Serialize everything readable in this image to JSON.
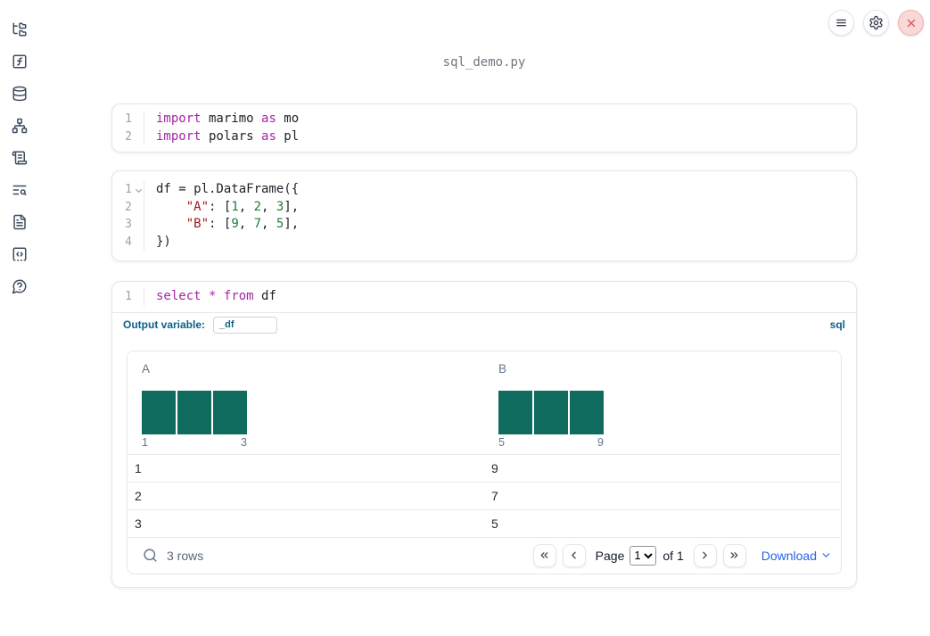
{
  "window": {
    "title": "sql_demo.py"
  },
  "topbar": {
    "buttons": [
      "menu",
      "settings",
      "close"
    ]
  },
  "sidebar": {
    "items": [
      "file-explorer",
      "variables",
      "data-sources",
      "dependency-graph",
      "scratchpad",
      "logs",
      "documentation",
      "snippets",
      "help"
    ]
  },
  "colors": {
    "histogram_bar": "#0e6b5e",
    "keyword": "#a626a4",
    "string": "#a31515",
    "number": "#1e7e34",
    "sql_accent": "#0a6286",
    "download_link": "#2563eb",
    "close_button_bg": "#f9d8d8",
    "close_button_x": "#d95a5a"
  },
  "cells": [
    {
      "name": "imports-cell",
      "lang": "python",
      "lines": [
        {
          "num": "1",
          "tokens": [
            {
              "t": "kw",
              "v": "import"
            },
            {
              "t": "pl",
              "v": " marimo "
            },
            {
              "t": "kw",
              "v": "as"
            },
            {
              "t": "pl",
              "v": " mo"
            }
          ]
        },
        {
          "num": "2",
          "tokens": [
            {
              "t": "kw",
              "v": "import"
            },
            {
              "t": "pl",
              "v": " polars "
            },
            {
              "t": "kw",
              "v": "as"
            },
            {
              "t": "pl",
              "v": " pl"
            }
          ]
        }
      ]
    },
    {
      "name": "dataframe-cell",
      "lang": "python",
      "lines": [
        {
          "num": "1",
          "fold": true,
          "tokens": [
            {
              "t": "pl",
              "v": "df = pl.DataFrame({"
            }
          ]
        },
        {
          "num": "2",
          "tokens": [
            {
              "t": "pl",
              "v": "    "
            },
            {
              "t": "str",
              "v": "\"A\""
            },
            {
              "t": "pl",
              "v": ": ["
            },
            {
              "t": "num",
              "v": "1"
            },
            {
              "t": "pl",
              "v": ", "
            },
            {
              "t": "num",
              "v": "2"
            },
            {
              "t": "pl",
              "v": ", "
            },
            {
              "t": "num",
              "v": "3"
            },
            {
              "t": "pl",
              "v": "],"
            }
          ]
        },
        {
          "num": "3",
          "tokens": [
            {
              "t": "pl",
              "v": "    "
            },
            {
              "t": "str",
              "v": "\"B\""
            },
            {
              "t": "pl",
              "v": ": ["
            },
            {
              "t": "num",
              "v": "9"
            },
            {
              "t": "pl",
              "v": ", "
            },
            {
              "t": "num",
              "v": "7"
            },
            {
              "t": "pl",
              "v": ", "
            },
            {
              "t": "num",
              "v": "5"
            },
            {
              "t": "pl",
              "v": "],"
            }
          ]
        },
        {
          "num": "4",
          "tokens": [
            {
              "t": "pl",
              "v": "})"
            }
          ]
        }
      ]
    },
    {
      "name": "sql-cell",
      "lang": "sql",
      "lines": [
        {
          "num": "1",
          "tokens": [
            {
              "t": "kw",
              "v": "select"
            },
            {
              "t": "pl",
              "v": " "
            },
            {
              "t": "kw",
              "v": "*"
            },
            {
              "t": "pl",
              "v": " "
            },
            {
              "t": "kw",
              "v": "from"
            },
            {
              "t": "pl",
              "v": " df"
            }
          ]
        }
      ],
      "footer": {
        "label": "Output variable:",
        "value": "_df",
        "lang_badge": "sql"
      }
    }
  ],
  "table": {
    "columns": [
      {
        "label": "A",
        "hist": {
          "bars": [
            1,
            1,
            1
          ],
          "min": "1",
          "max": "3"
        }
      },
      {
        "label": "B",
        "hist": {
          "bars": [
            1,
            1,
            1
          ],
          "min": "5",
          "max": "9"
        }
      }
    ],
    "rows": [
      [
        "1",
        "9"
      ],
      [
        "2",
        "7"
      ],
      [
        "3",
        "5"
      ]
    ],
    "footer": {
      "row_count": "3 rows",
      "page_label": "Page",
      "page_value": "1",
      "of_label": "of 1",
      "download_label": "Download"
    }
  },
  "chart_data": [
    {
      "type": "bar",
      "title": "A",
      "categories": [
        "1",
        "2",
        "3"
      ],
      "values": [
        1,
        1,
        1
      ],
      "xlabel": "",
      "ylabel": "",
      "x_axis_labels_shown": [
        "1",
        "3"
      ],
      "legend": false,
      "grid": false
    },
    {
      "type": "bar",
      "title": "B",
      "categories": [
        "5",
        "7",
        "9"
      ],
      "values": [
        1,
        1,
        1
      ],
      "xlabel": "",
      "ylabel": "",
      "x_axis_labels_shown": [
        "5",
        "9"
      ],
      "legend": false,
      "grid": false
    }
  ]
}
